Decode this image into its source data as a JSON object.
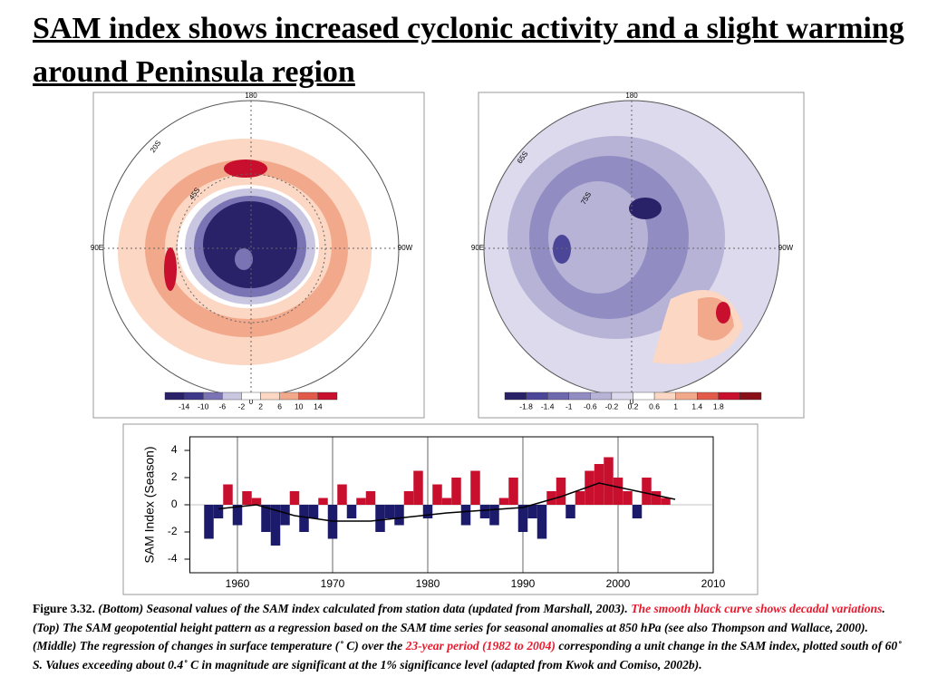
{
  "title": "SAM index shows increased cyclonic activity and a slight warming around Peninsula region",
  "maps": [
    {
      "labels": [
        "180",
        "90E",
        "90W",
        "0",
        "20S",
        "45S"
      ],
      "colorbar": {
        "colors": [
          "#2a2268",
          "#3d3888",
          "#7a74b4",
          "#c9c6e2",
          "#ffffff",
          "#fbd7c4",
          "#f2a88a",
          "#e25a4a",
          "#c8102e"
        ],
        "labels": [
          "-14",
          "-10",
          "-6",
          "-2",
          "2",
          "6",
          "10",
          "14"
        ]
      }
    },
    {
      "labels": [
        "180",
        "90E",
        "90W",
        "0",
        "65S",
        "75S"
      ],
      "colorbar": {
        "colors": [
          "#2a2268",
          "#4c4698",
          "#6e69ae",
          "#918cc2",
          "#b6b3d6",
          "#dcdaec",
          "#ffffff",
          "#fbd7c4",
          "#f2a88a",
          "#e25a4a",
          "#c8102e",
          "#8a1018"
        ],
        "labels": [
          "-1.8",
          "-1.4",
          "-1",
          "-0.6",
          "-0.2",
          "0.2",
          "0.6",
          "1",
          "1.4",
          "1.8"
        ]
      }
    }
  ],
  "chart_data": {
    "type": "bar",
    "ylabel": "SAM Index (Season)",
    "x": [
      1957,
      1958,
      1959,
      1960,
      1961,
      1962,
      1963,
      1964,
      1965,
      1966,
      1967,
      1968,
      1969,
      1970,
      1971,
      1972,
      1973,
      1974,
      1975,
      1976,
      1977,
      1978,
      1979,
      1980,
      1981,
      1982,
      1983,
      1984,
      1985,
      1986,
      1987,
      1988,
      1989,
      1990,
      1991,
      1992,
      1993,
      1994,
      1995,
      1996,
      1997,
      1998,
      1999,
      2000,
      2001,
      2002,
      2003,
      2004,
      2005
    ],
    "series": [
      {
        "color": "#c8102e",
        "negative_color": "#1c1a6a",
        "values": [
          -2.5,
          -1,
          1.5,
          -1.5,
          1,
          0.5,
          -2,
          -3,
          -1.5,
          1,
          -2,
          -1,
          0.5,
          -2.5,
          1.5,
          -1,
          0.5,
          1,
          -2,
          -1,
          -1.5,
          1,
          2.5,
          -1,
          1.5,
          0.5,
          2,
          -1.5,
          2.5,
          -1,
          -1.5,
          0.5,
          2,
          -2,
          -1,
          -2.5,
          1,
          2,
          -1,
          1,
          2.5,
          3,
          3.5,
          2,
          1,
          -1,
          2,
          1,
          0.5
        ]
      },
      {
        "type": "line",
        "color": "#000000",
        "x": [
          1958,
          1962,
          1966,
          1970,
          1974,
          1978,
          1982,
          1986,
          1990,
          1994,
          1998,
          2002,
          2006
        ],
        "values": [
          -0.3,
          0,
          -0.8,
          -1.2,
          -1.2,
          -0.9,
          -0.6,
          -0.4,
          -0.2,
          0.6,
          1.6,
          1.0,
          0.4
        ]
      }
    ],
    "xlim": [
      1955,
      2010
    ],
    "xticks": [
      1960,
      1970,
      1980,
      1990,
      2000,
      2010
    ],
    "ylim": [
      -5,
      5
    ],
    "yticks": [
      -4,
      -2,
      0,
      2,
      4
    ]
  },
  "caption": [
    {
      "text": "Figure 3.32. ",
      "style": "normal"
    },
    {
      "text": "(Bottom) Seasonal values of the SAM index calculated from station data (updated from Marshall, 2003).  ",
      "style": "italic"
    },
    {
      "text": "The smooth black curve shows decadal variations",
      "style": "italic",
      "color": "#e8192c"
    },
    {
      "text": ". (Top) The SAM geopotential height pattern  as a regression based on the SAM time series for seasonal anomalies at 850 hPa (see also Thompson and Wallace, 2000).  (Middle) The regression of changes in surface temperature (˚ C) over the ",
      "style": "italic"
    },
    {
      "text": "23-year period (1982 to 2004)",
      "style": "italic",
      "color": "#e8192c"
    },
    {
      "text": " corresponding a unit change in the SAM index, plotted south of 60˚ S. Values exceeding about 0.4˚ C in magnitude are significant at the 1% significance level (adapted from Kwok and Comiso, 2002b).",
      "style": "italic"
    }
  ]
}
